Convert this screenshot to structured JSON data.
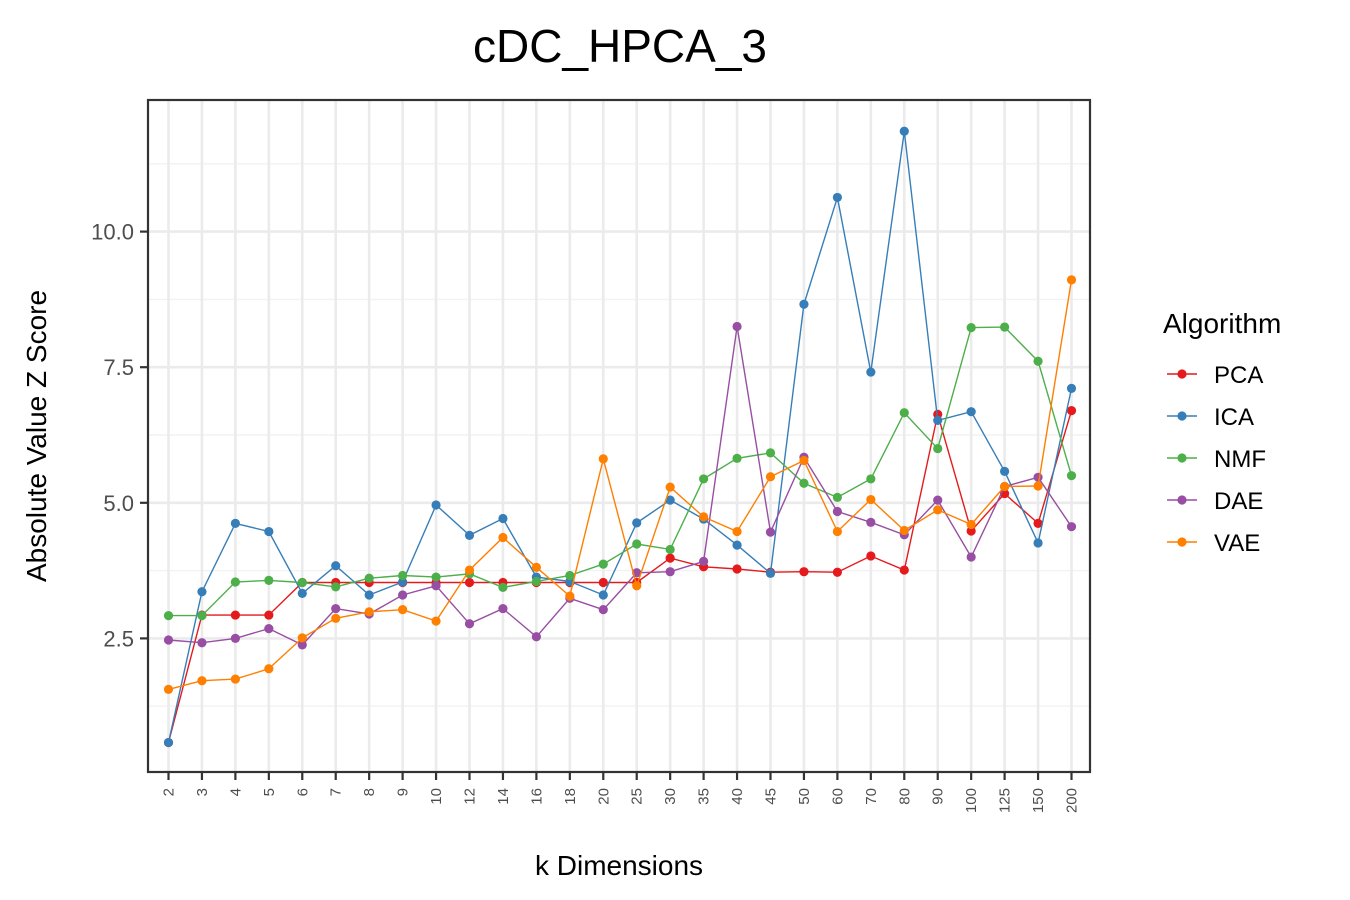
{
  "chart_data": {
    "type": "line",
    "title": "cDC_HPCA_3",
    "xlabel": "k Dimensions",
    "ylabel": "Absolute Value Z Score",
    "categories": [
      "2",
      "3",
      "4",
      "5",
      "6",
      "7",
      "8",
      "9",
      "10",
      "12",
      "14",
      "16",
      "18",
      "20",
      "25",
      "30",
      "35",
      "40",
      "45",
      "50",
      "60",
      "70",
      "80",
      "90",
      "100",
      "125",
      "150",
      "200"
    ],
    "yticks": [
      "2.5",
      "5.0",
      "7.5",
      "10.0"
    ],
    "ylim": [
      0.0,
      12.35
    ],
    "grid": true,
    "legend": {
      "title": "Algorithm",
      "placement": "right"
    },
    "series": [
      {
        "name": "PCA",
        "color": "#e41a1c",
        "values": [
          0.58,
          2.93,
          2.93,
          2.93,
          3.53,
          3.53,
          3.53,
          3.53,
          3.53,
          3.53,
          3.53,
          3.53,
          3.53,
          3.53,
          3.53,
          3.98,
          3.82,
          3.78,
          3.72,
          3.73,
          3.72,
          4.02,
          3.76,
          6.63,
          4.48,
          5.17,
          4.62,
          6.7
        ]
      },
      {
        "name": "ICA",
        "color": "#377eb8",
        "values": [
          0.58,
          3.36,
          4.62,
          4.47,
          3.33,
          3.84,
          3.3,
          3.54,
          4.96,
          4.4,
          4.71,
          3.63,
          3.55,
          3.3,
          4.63,
          5.05,
          4.7,
          4.22,
          3.7,
          8.66,
          10.63,
          7.41,
          11.85,
          6.52,
          6.68,
          5.58,
          4.26,
          7.11
        ]
      },
      {
        "name": "NMF",
        "color": "#4daf4a",
        "values": [
          2.92,
          2.92,
          3.54,
          3.57,
          3.53,
          3.45,
          3.61,
          3.66,
          3.63,
          3.69,
          3.44,
          3.55,
          3.66,
          3.87,
          4.24,
          4.14,
          5.44,
          5.82,
          5.92,
          5.36,
          5.1,
          5.44,
          6.66,
          6.0,
          8.23,
          8.24,
          7.61,
          5.5
        ]
      },
      {
        "name": "DAE",
        "color": "#984ea3",
        "values": [
          2.47,
          2.42,
          2.5,
          2.68,
          2.38,
          3.05,
          2.95,
          3.3,
          3.47,
          2.77,
          3.05,
          2.53,
          3.24,
          3.03,
          3.71,
          3.73,
          3.92,
          8.25,
          4.46,
          5.84,
          4.84,
          4.64,
          4.41,
          5.05,
          4.0,
          5.3,
          5.47,
          4.56
        ]
      },
      {
        "name": "VAE",
        "color": "#ff7f00",
        "values": [
          1.56,
          1.72,
          1.75,
          1.94,
          2.51,
          2.87,
          2.99,
          3.03,
          2.82,
          3.76,
          4.36,
          3.81,
          3.28,
          5.81,
          3.47,
          5.29,
          4.74,
          4.47,
          5.48,
          5.78,
          4.47,
          5.06,
          4.49,
          4.87,
          4.6,
          5.3,
          5.31,
          9.11
        ]
      }
    ]
  }
}
